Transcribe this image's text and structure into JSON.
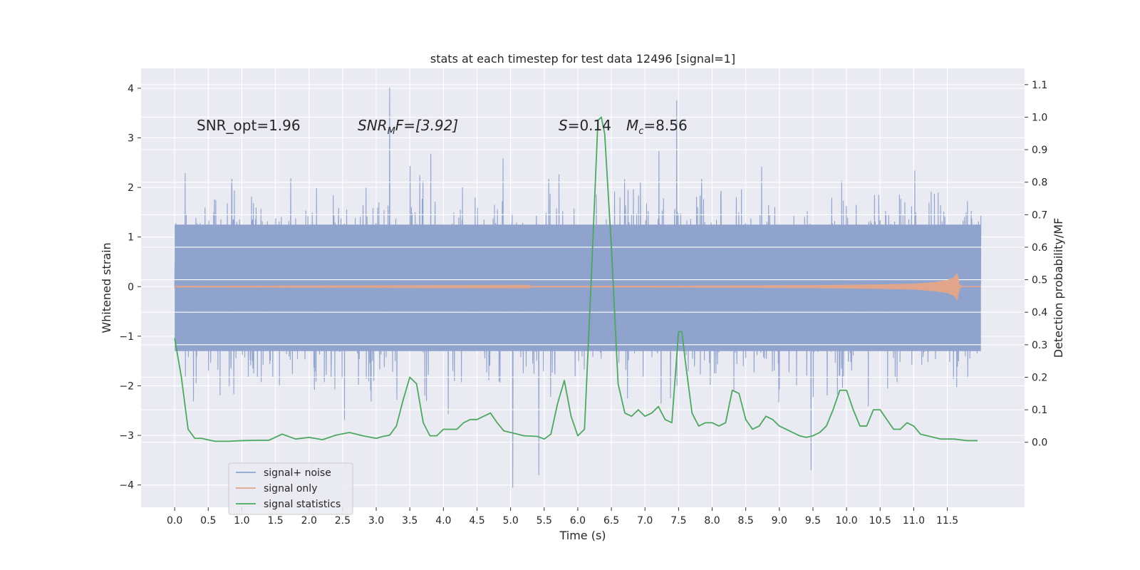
{
  "chart_data": {
    "type": "line",
    "title": "stats at each timestep for test data 12496 [signal=1]",
    "xlabel": "Time (s)",
    "ylabel_left": "Whitened strain",
    "ylabel_right": "Detection probability/MF",
    "xlim": [
      -0.5,
      12.65
    ],
    "ylim_left": [
      -4.45,
      4.4
    ],
    "ylim_right": [
      -0.2,
      1.15
    ],
    "x_ticks": [
      "0.0",
      "0.5",
      "1.0",
      "1.5",
      "2.0",
      "2.5",
      "3.0",
      "3.5",
      "4.0",
      "4.5",
      "5.0",
      "5.5",
      "6.0",
      "6.5",
      "7.0",
      "7.5",
      "8.0",
      "8.5",
      "9.0",
      "9.5",
      "10.0",
      "10.5",
      "11.0",
      "11.5"
    ],
    "y_ticks_left": [
      "−4",
      "−3",
      "−2",
      "−1",
      "0",
      "1",
      "2",
      "3",
      "4"
    ],
    "y_ticks_right": [
      "0.0",
      "0.1",
      "0.2",
      "0.3",
      "0.4",
      "0.5",
      "0.6",
      "0.7",
      "0.8",
      "0.9",
      "1.0",
      "1.1"
    ],
    "grid": true,
    "legend_position": "lower-left",
    "annotations": {
      "snr_opt": "SNR_opt=1.96",
      "snr_mf_main": "SNR",
      "snr_mf_sub": "M",
      "snr_mf_rest": "F=[3.92]",
      "s_main": "S",
      "s_rest": "=0.14",
      "mc_main": "M",
      "mc_sub": "c",
      "mc_rest": "=8.56"
    },
    "series": [
      {
        "name": "signal+ noise",
        "color": "#8fa3cc",
        "x_range": [
          0.0,
          12.0
        ],
        "typical_band": [
          -1.3,
          1.25
        ],
        "peaks": [
          {
            "x": 3.2,
            "y": 4.0
          },
          {
            "x": 7.47,
            "y": 3.75
          },
          {
            "x": 5.03,
            "y": -4.05
          },
          {
            "x": 9.47,
            "y": -3.7
          },
          {
            "x": 5.42,
            "y": -3.8
          }
        ]
      },
      {
        "name": "signal only",
        "color": "#e0a58a",
        "x": [
          0.0,
          6.5,
          8.0,
          9.5,
          10.5,
          11.0,
          11.3,
          11.5,
          11.6,
          11.65,
          11.68,
          11.72,
          12.0
        ],
        "envelope": [
          0.005,
          0.015,
          0.02,
          0.03,
          0.045,
          0.06,
          0.09,
          0.13,
          0.19,
          0.28,
          0.05,
          0.0,
          0.0
        ]
      },
      {
        "name": "signal statistics",
        "color": "#4da760",
        "axis": "right",
        "x": [
          0.0,
          0.1,
          0.2,
          0.3,
          0.4,
          0.6,
          0.8,
          1.0,
          1.2,
          1.4,
          1.6,
          1.8,
          2.0,
          2.2,
          2.4,
          2.6,
          2.8,
          3.0,
          3.1,
          3.2,
          3.3,
          3.4,
          3.5,
          3.6,
          3.7,
          3.8,
          3.9,
          4.0,
          4.2,
          4.3,
          4.4,
          4.5,
          4.6,
          4.7,
          4.8,
          4.9,
          5.0,
          5.2,
          5.4,
          5.5,
          5.6,
          5.7,
          5.8,
          5.9,
          6.0,
          6.1,
          6.2,
          6.3,
          6.35,
          6.4,
          6.5,
          6.6,
          6.7,
          6.8,
          6.9,
          7.0,
          7.1,
          7.2,
          7.3,
          7.4,
          7.5,
          7.55,
          7.6,
          7.7,
          7.8,
          7.9,
          8.0,
          8.1,
          8.2,
          8.3,
          8.4,
          8.5,
          8.6,
          8.7,
          8.8,
          8.9,
          9.0,
          9.1,
          9.2,
          9.3,
          9.4,
          9.5,
          9.6,
          9.7,
          9.8,
          9.9,
          10.0,
          10.1,
          10.2,
          10.3,
          10.4,
          10.5,
          10.6,
          10.7,
          10.8,
          10.9,
          11.0,
          11.1,
          11.2,
          11.4,
          11.6,
          11.8,
          11.95
        ],
        "y": [
          0.32,
          0.2,
          0.04,
          0.012,
          0.012,
          0.003,
          0.003,
          0.005,
          0.006,
          0.006,
          0.025,
          0.01,
          0.015,
          0.008,
          0.022,
          0.03,
          0.02,
          0.012,
          0.018,
          0.022,
          0.05,
          0.13,
          0.2,
          0.18,
          0.06,
          0.02,
          0.02,
          0.04,
          0.04,
          0.06,
          0.07,
          0.07,
          0.08,
          0.09,
          0.06,
          0.035,
          0.03,
          0.02,
          0.018,
          0.01,
          0.025,
          0.12,
          0.19,
          0.08,
          0.02,
          0.04,
          0.5,
          0.99,
          1.0,
          0.95,
          0.6,
          0.18,
          0.09,
          0.08,
          0.1,
          0.08,
          0.09,
          0.11,
          0.07,
          0.06,
          0.34,
          0.34,
          0.25,
          0.09,
          0.05,
          0.06,
          0.06,
          0.05,
          0.06,
          0.16,
          0.15,
          0.07,
          0.04,
          0.05,
          0.08,
          0.07,
          0.05,
          0.04,
          0.03,
          0.02,
          0.015,
          0.02,
          0.03,
          0.05,
          0.1,
          0.16,
          0.16,
          0.1,
          0.05,
          0.05,
          0.1,
          0.1,
          0.07,
          0.04,
          0.04,
          0.06,
          0.05,
          0.025,
          0.02,
          0.01,
          0.01,
          0.005,
          0.005
        ]
      }
    ]
  }
}
